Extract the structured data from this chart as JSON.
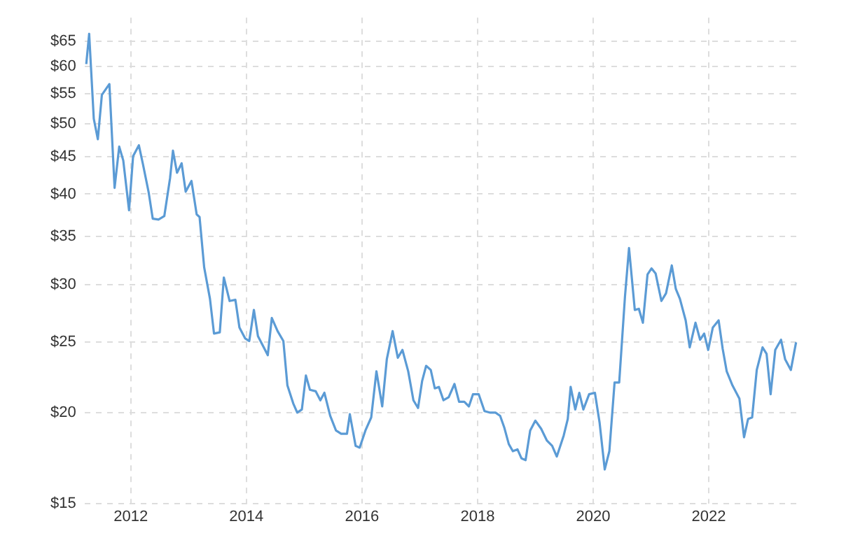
{
  "chart_data": {
    "type": "line",
    "x": [
      2011.23,
      2011.28,
      2011.36,
      2011.43,
      2011.5,
      2011.63,
      2011.72,
      2011.8,
      2011.87,
      2011.97,
      2012.04,
      2012.14,
      2012.21,
      2012.31,
      2012.38,
      2012.48,
      2012.58,
      2012.68,
      2012.73,
      2012.8,
      2012.88,
      2012.95,
      2013.05,
      2013.14,
      2013.19,
      2013.27,
      2013.37,
      2013.44,
      2013.54,
      2013.61,
      2013.71,
      2013.81,
      2013.88,
      2013.98,
      2014.05,
      2014.13,
      2014.2,
      2014.3,
      2014.37,
      2014.44,
      2014.54,
      2014.64,
      2014.71,
      2014.81,
      2014.88,
      2014.96,
      2015.03,
      2015.1,
      2015.2,
      2015.28,
      2015.35,
      2015.45,
      2015.55,
      2015.64,
      2015.74,
      2015.79,
      2015.89,
      2015.96,
      2016.06,
      2016.16,
      2016.25,
      2016.35,
      2016.43,
      2016.53,
      2016.62,
      2016.7,
      2016.8,
      2016.89,
      2016.97,
      2017.04,
      2017.11,
      2017.19,
      2017.26,
      2017.33,
      2017.41,
      2017.5,
      2017.6,
      2017.68,
      2017.77,
      2017.85,
      2017.92,
      2018.02,
      2018.12,
      2018.22,
      2018.31,
      2018.39,
      2018.46,
      2018.54,
      2018.61,
      2018.69,
      2018.76,
      2018.83,
      2018.91,
      2019.0,
      2019.1,
      2019.2,
      2019.29,
      2019.37,
      2019.49,
      2019.56,
      2019.61,
      2019.69,
      2019.76,
      2019.83,
      2019.93,
      2020.03,
      2020.11,
      2020.2,
      2020.28,
      2020.37,
      2020.45,
      2020.55,
      2020.62,
      2020.72,
      2020.79,
      2020.86,
      2020.94,
      2021.01,
      2021.08,
      2021.18,
      2021.26,
      2021.36,
      2021.43,
      2021.5,
      2021.6,
      2021.67,
      2021.77,
      2021.85,
      2021.92,
      2021.99,
      2022.07,
      2022.17,
      2022.24,
      2022.31,
      2022.41,
      2022.53,
      2022.61,
      2022.68,
      2022.75,
      2022.83,
      2022.93,
      2023.0,
      2023.07,
      2023.15,
      2023.25,
      2023.32,
      2023.42,
      2023.51
    ],
    "series": [
      {
        "color": "#5b9bd5",
        "values": [
          60.4,
          66.5,
          50.8,
          47.6,
          54.8,
          56.7,
          40.8,
          46.5,
          44.5,
          38.0,
          45.1,
          46.7,
          44.0,
          40.2,
          37.0,
          36.9,
          37.3,
          42.1,
          45.9,
          42.8,
          44.1,
          40.3,
          41.7,
          37.5,
          37.2,
          31.7,
          28.7,
          25.7,
          25.8,
          30.7,
          28.5,
          28.6,
          26.2,
          25.3,
          25.1,
          27.7,
          25.5,
          24.6,
          24.0,
          27.0,
          25.9,
          25.1,
          21.8,
          20.6,
          20.0,
          20.2,
          22.5,
          21.5,
          21.4,
          20.8,
          21.3,
          19.8,
          18.9,
          18.7,
          18.7,
          19.9,
          18.0,
          17.9,
          18.9,
          19.7,
          22.8,
          20.4,
          23.7,
          25.9,
          23.8,
          24.4,
          22.8,
          20.8,
          20.3,
          22.1,
          23.2,
          22.9,
          21.6,
          21.7,
          20.8,
          21.0,
          21.9,
          20.7,
          20.7,
          20.4,
          21.2,
          21.2,
          20.1,
          20.0,
          20.0,
          19.8,
          19.1,
          18.1,
          17.7,
          17.8,
          17.3,
          17.2,
          18.9,
          19.5,
          19.0,
          18.3,
          18.0,
          17.4,
          18.6,
          19.6,
          21.7,
          20.2,
          21.3,
          20.2,
          21.2,
          21.3,
          19.4,
          16.7,
          17.7,
          22.0,
          22.0,
          28.9,
          33.7,
          27.7,
          27.8,
          26.6,
          31.0,
          31.6,
          31.1,
          28.5,
          29.2,
          31.9,
          29.6,
          28.7,
          26.8,
          24.6,
          26.6,
          25.2,
          25.7,
          24.4,
          26.2,
          26.8,
          24.5,
          22.8,
          21.8,
          20.9,
          18.5,
          19.6,
          19.7,
          22.9,
          24.6,
          24.1,
          21.2,
          24.4,
          25.2,
          23.7,
          22.9,
          25.0
        ]
      }
    ],
    "xlim": [
      2011.2,
      2023.55
    ],
    "xticks": [
      2012,
      2014,
      2016,
      2018,
      2020,
      2022
    ],
    "log": "y",
    "ylim": [
      15,
      70
    ],
    "yticks": [
      {
        "value": 15,
        "label": "$15"
      },
      {
        "value": 20,
        "label": "$20"
      },
      {
        "value": 25,
        "label": "$25"
      },
      {
        "value": 30,
        "label": "$30"
      },
      {
        "value": 35,
        "label": "$35"
      },
      {
        "value": 40,
        "label": "$40"
      },
      {
        "value": 45,
        "label": "$45"
      },
      {
        "value": 50,
        "label": "$50"
      },
      {
        "value": 55,
        "label": "$55"
      },
      {
        "value": 60,
        "label": "$60"
      },
      {
        "value": 65,
        "label": "$65"
      }
    ],
    "grid": true,
    "line_style": "solid",
    "marker": "none",
    "legend": false
  }
}
